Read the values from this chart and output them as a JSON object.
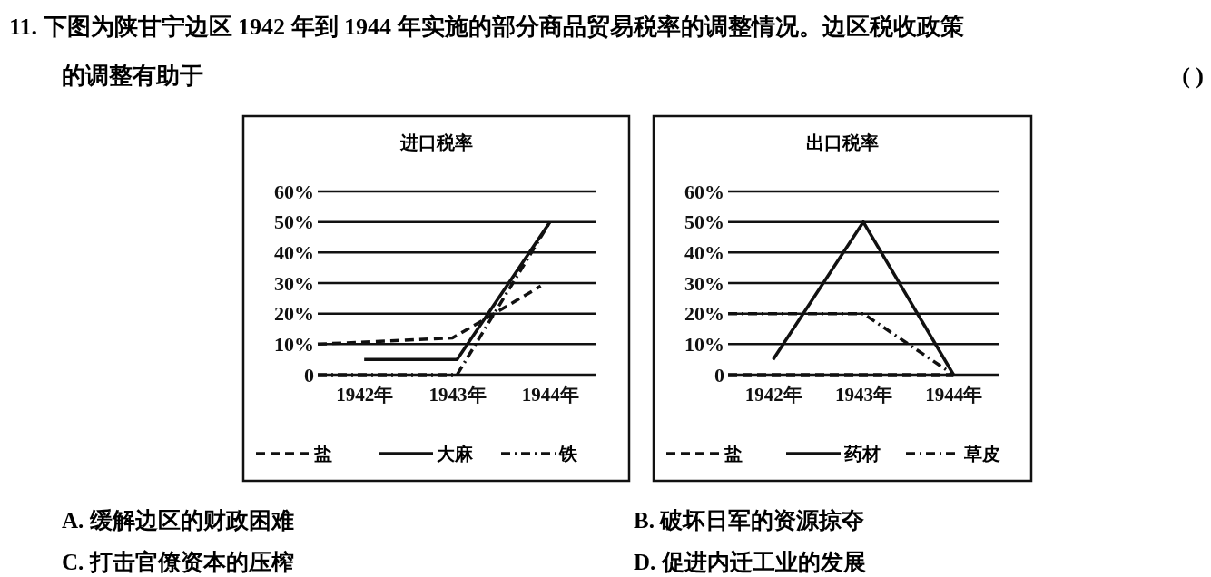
{
  "chart_data": [
    {
      "type": "line",
      "title": "进口税率",
      "annotations": [
        "11. 下图为陕甘宁边区 1942 年到 1944 年实施的部分商品贸易税率的调整情况。边区税收政策",
        "的调整有助于",
        "(      )",
        "A. 缓解边区的财政困难",
        "B. 破坏日军的资源掠夺",
        "C. 打击官僚资本的压榨",
        "D. 促进内迁工业的发展"
      ],
      "xlim": [
        1941.5,
        1944.5
      ],
      "xticks": [
        {
          "value": 1942,
          "label": "1942年"
        },
        {
          "value": 1943,
          "label": "1943年"
        },
        {
          "value": 1944,
          "label": "1944年"
        }
      ],
      "ylim": [
        0,
        60
      ],
      "yticks": [
        0,
        {
          "value": 10,
          "label": "10%"
        },
        {
          "value": 20,
          "label": "20%"
        },
        {
          "value": 30,
          "label": "30%"
        },
        {
          "value": 40,
          "label": "40%"
        },
        {
          "value": 50,
          "label": "50%"
        },
        {
          "value": 60,
          "label": "60%"
        }
      ],
      "grid": "y",
      "legend": "bottom",
      "series": [
        {
          "name": "盐",
          "color": "#111111",
          "line_style": "dashed",
          "x": [
            1941.5,
            1942.95,
            1943.4,
            1943.9
          ],
          "values": [
            10,
            12,
            20,
            29
          ]
        },
        {
          "name": "大麻",
          "color": "#111111",
          "line_style": "solid",
          "x": [
            1942,
            1943,
            1944
          ],
          "values": [
            5,
            5,
            50
          ]
        },
        {
          "name": "铁",
          "color": "#111111",
          "line_style": "dashdot",
          "x": [
            1941.5,
            1943,
            1944
          ],
          "values": [
            0,
            0,
            50
          ]
        }
      ]
    },
    {
      "type": "line",
      "title": "出口税率",
      "xlim": [
        1941.5,
        1944.5
      ],
      "xticks": [
        {
          "value": 1942,
          "label": "1942年"
        },
        {
          "value": 1943,
          "label": "1943年"
        },
        {
          "value": 1944,
          "label": "1944年"
        }
      ],
      "ylim": [
        0,
        60
      ],
      "yticks": [
        0,
        {
          "value": 10,
          "label": "10%"
        },
        {
          "value": 20,
          "label": "20%"
        },
        {
          "value": 30,
          "label": "30%"
        },
        {
          "value": 40,
          "label": "40%"
        },
        {
          "value": 50,
          "label": "50%"
        },
        {
          "value": 60,
          "label": "60%"
        }
      ],
      "grid": "y",
      "legend": "bottom",
      "series": [
        {
          "name": "盐",
          "color": "#111111",
          "line_style": "dashed",
          "x": [
            1941.5,
            1944
          ],
          "values": [
            0,
            0
          ]
        },
        {
          "name": "药材",
          "color": "#111111",
          "line_style": "solid",
          "x": [
            1942,
            1943,
            1944
          ],
          "values": [
            5,
            50,
            0
          ]
        },
        {
          "name": "草皮",
          "color": "#111111",
          "line_style": "dashdot",
          "x": [
            1941.5,
            1943,
            1944
          ],
          "values": [
            20,
            20,
            0
          ]
        }
      ]
    }
  ]
}
